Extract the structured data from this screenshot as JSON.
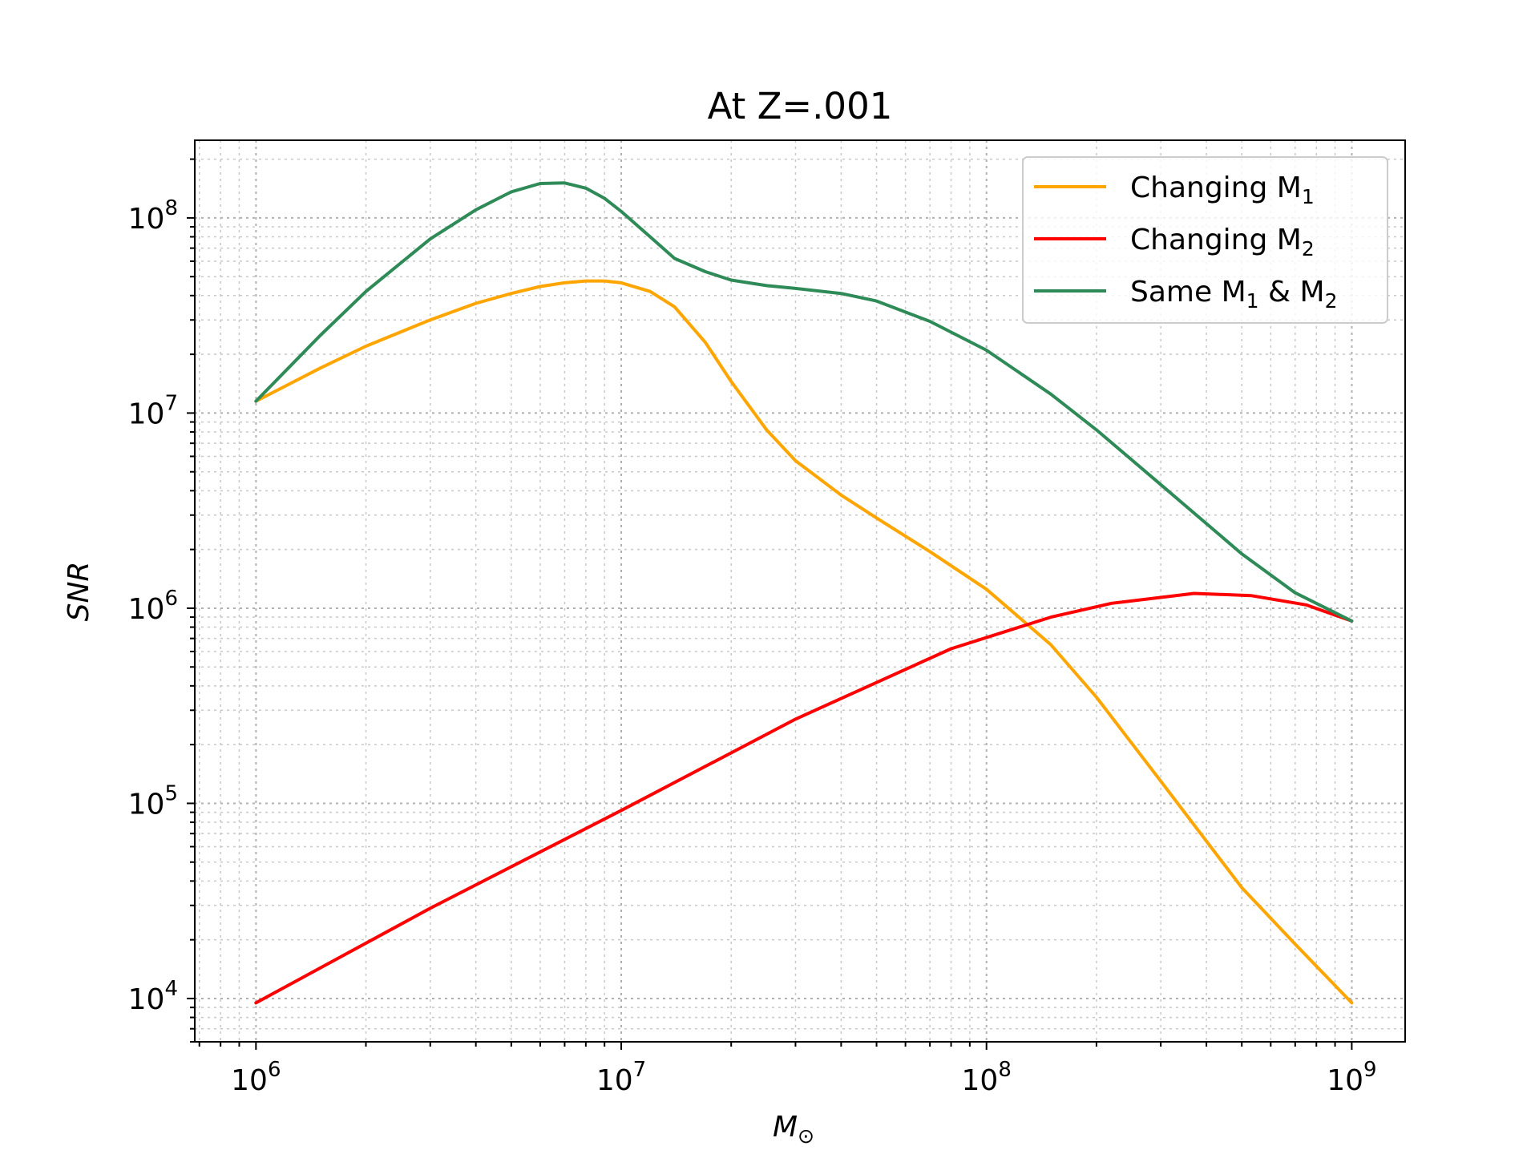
{
  "chart_data": {
    "type": "line",
    "title": "At Z=.001",
    "xlabel": "M",
    "xlabel_sub": "⊙",
    "ylabel": "SNR",
    "xscale": "log",
    "yscale": "log",
    "xlim": [
      680000,
      1400000000
    ],
    "ylim": [
      6000,
      250000000
    ],
    "grid": true,
    "legend_position": "top-right",
    "xticks": [
      {
        "value": 1000000,
        "base": "10",
        "exp": "6"
      },
      {
        "value": 10000000,
        "base": "10",
        "exp": "7"
      },
      {
        "value": 100000000,
        "base": "10",
        "exp": "8"
      },
      {
        "value": 1000000000,
        "base": "10",
        "exp": "9"
      }
    ],
    "yticks": [
      {
        "value": 10000,
        "base": "10",
        "exp": "4"
      },
      {
        "value": 100000,
        "base": "10",
        "exp": "5"
      },
      {
        "value": 1000000,
        "base": "10",
        "exp": "6"
      },
      {
        "value": 10000000,
        "base": "10",
        "exp": "7"
      },
      {
        "value": 100000000,
        "base": "10",
        "exp": "8"
      }
    ],
    "series": [
      {
        "name": "Changing M",
        "name_sub": "1",
        "color": "#FFA500",
        "x": [
          1000000,
          1500000,
          2000000,
          3000000,
          4000000,
          5000000,
          6000000,
          7000000,
          8000000,
          9000000,
          10000000,
          12000000,
          14000000,
          17000000,
          20000000,
          25000000,
          30000000,
          40000000,
          50000000,
          70000000,
          100000000,
          150000000,
          200000000,
          300000000,
          500000000,
          700000000,
          1000000000
        ],
        "y": [
          11500000,
          17000000,
          22000000,
          30000000,
          36500000,
          41000000,
          44500000,
          46500000,
          47500000,
          47500000,
          46500000,
          42000000,
          35000000,
          23000000,
          14500000,
          8200000,
          5700000,
          3800000,
          2900000,
          1950000,
          1250000,
          650000,
          350000,
          130000,
          37000,
          19000,
          9500
        ]
      },
      {
        "name": "Changing M",
        "name_sub": "2",
        "color": "#FF0000",
        "x": [
          1000000,
          3000000,
          10000000,
          30000000,
          80000000,
          150000000,
          220000000,
          370000000,
          530000000,
          750000000,
          1000000000
        ],
        "y": [
          9500,
          29000,
          92000,
          270000,
          620000,
          900000,
          1060000,
          1190000,
          1160000,
          1040000,
          860000
        ]
      },
      {
        "name": "Same M",
        "name_mid": " & M",
        "name_sub": "1",
        "name_sub2": "2",
        "color": "#2E8B57",
        "x": [
          1000000,
          1500000,
          2000000,
          3000000,
          4000000,
          5000000,
          6000000,
          7000000,
          8000000,
          9000000,
          10000000,
          12000000,
          14000000,
          17000000,
          20000000,
          25000000,
          30000000,
          40000000,
          50000000,
          70000000,
          100000000,
          150000000,
          200000000,
          300000000,
          500000000,
          700000000,
          1000000000
        ],
        "y": [
          11500000,
          25000000,
          42000000,
          78000000,
          110000000,
          136000000,
          150000000,
          151000000,
          142000000,
          126000000,
          108000000,
          80000000,
          62000000,
          53000000,
          48000000,
          45000000,
          43500000,
          41000000,
          37500000,
          29500000,
          21000000,
          12500000,
          8200000,
          4300000,
          1900000,
          1200000,
          860000
        ]
      }
    ]
  }
}
